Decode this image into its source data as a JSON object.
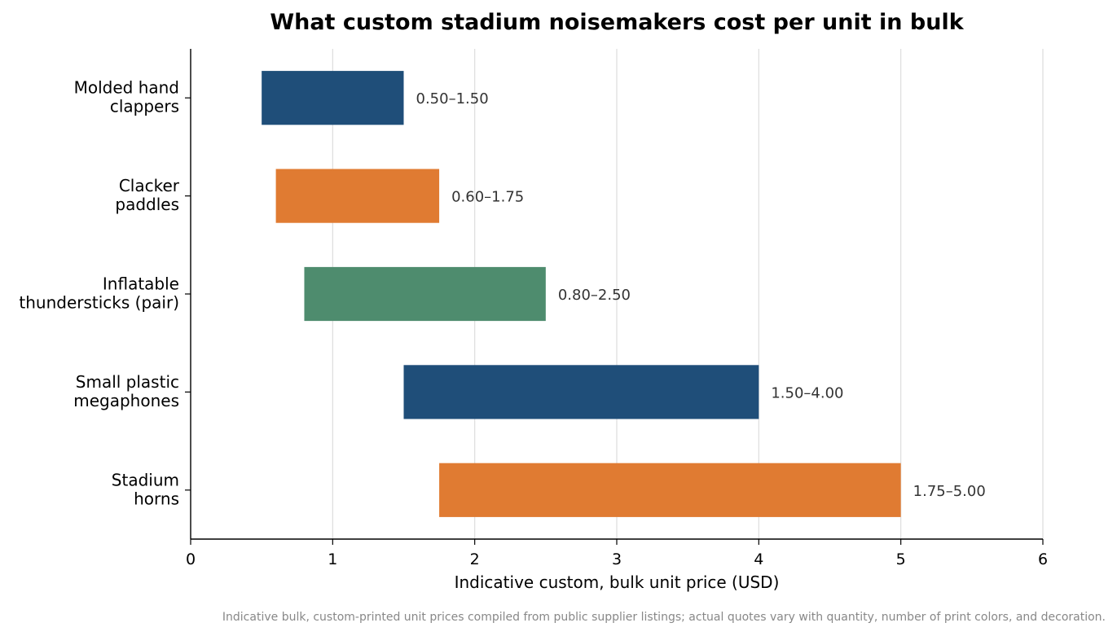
{
  "chart_data": {
    "type": "bar",
    "orientation": "horizontal",
    "bar_style": "floating range",
    "title": "What custom stadium noisemakers cost per unit in bulk",
    "xlabel": "Indicative custom, bulk unit price (USD)",
    "ylabel": "",
    "xlim": [
      0,
      6
    ],
    "xticks": [
      "0",
      "1",
      "2",
      "3",
      "4",
      "5",
      "6"
    ],
    "grid": "vertical",
    "legend": "none",
    "categories": [
      [
        "Molded hand",
        "clappers"
      ],
      [
        "Clacker",
        "paddles"
      ],
      [
        "Inflatable",
        "thundersticks (pair)"
      ],
      [
        "Small plastic",
        "megaphones"
      ],
      [
        "Stadium",
        "horns"
      ]
    ],
    "ranges": [
      {
        "low": 0.5,
        "high": 1.5,
        "label": "0.50–1.50",
        "color": "#1f4e79"
      },
      {
        "low": 0.6,
        "high": 1.75,
        "label": "0.60–1.75",
        "color": "#e07b32"
      },
      {
        "low": 0.8,
        "high": 2.5,
        "label": "0.80–2.50",
        "color": "#4e8c6e"
      },
      {
        "low": 1.5,
        "high": 4.0,
        "label": "1.50–4.00",
        "color": "#1f4e79"
      },
      {
        "low": 1.75,
        "high": 5.0,
        "label": "1.75–5.00",
        "color": "#e07b32"
      }
    ]
  },
  "caption": "Indicative bulk, custom-printed unit prices compiled from public supplier listings; actual quotes vary with quantity, number of print colors, and decoration."
}
